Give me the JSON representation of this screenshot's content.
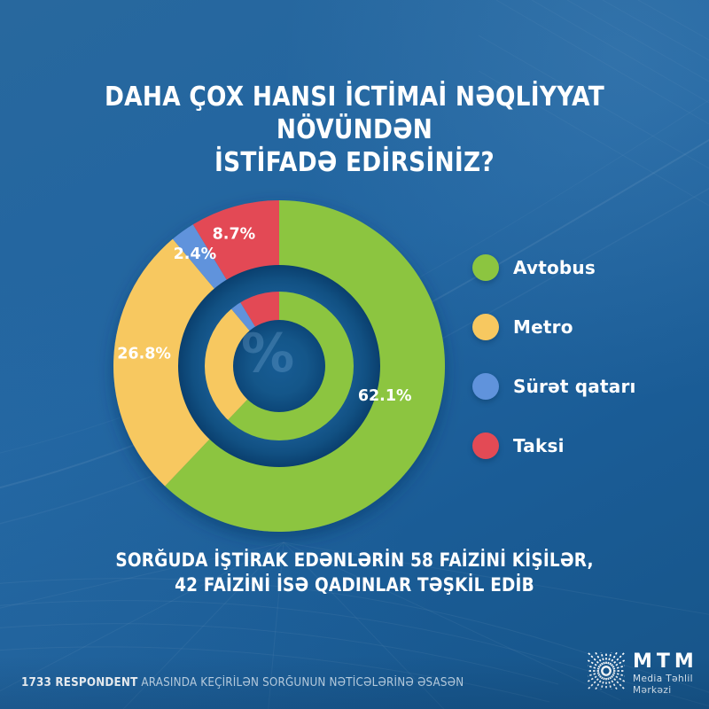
{
  "title": {
    "line1": "DAHA ÇOX HANSI İCTİMAİ NƏQLİYYAT NÖVÜNDƏN",
    "line2": "İSTİFADƏ EDİRSİNİZ?"
  },
  "chart_data": {
    "type": "pie",
    "style": "double-ring-donut",
    "title": "Daha çox hansı ictimai nəqliyyat növündən istifadə edirsiniz?",
    "categories": [
      "Avtobus",
      "Metro",
      "Sürət qatarı",
      "Taksi"
    ],
    "values": [
      62.1,
      26.8,
      2.4,
      8.7
    ],
    "labels": [
      "62.1%",
      "26.8%",
      "2.4%",
      "8.7%"
    ],
    "colors": [
      "#8cc540",
      "#f7c860",
      "#6093dc",
      "#e34a55"
    ],
    "center_symbol": "%",
    "legend_position": "right",
    "start_angle_deg": 0,
    "direction": "clockwise"
  },
  "legend": {
    "items": [
      {
        "label": "Avtobus",
        "color": "#8cc540"
      },
      {
        "label": "Metro",
        "color": "#f7c860"
      },
      {
        "label": "Sürət qatarı",
        "color": "#6093dc"
      },
      {
        "label": "Taksi",
        "color": "#e34a55"
      }
    ]
  },
  "subtitle": {
    "line1": "SORĞUDA İŞTİRAK EDƏNLƏRİN 58 FAİZİNİ KİŞİLƏR,",
    "line2": "42 FAİZİNİ İSƏ QADINLAR TƏŞKİL EDİB"
  },
  "footer": {
    "bold": "1733 RESPONDENT",
    "rest": " ARASINDA KEÇİRİLƏN SORĞUNUN NƏTİCƏLƏRİNƏ ƏSASƏN"
  },
  "logo": {
    "name": "MTM",
    "line1": "Media Təhlil",
    "line2": "Mərkəzi"
  },
  "theme": {
    "background": "#1f63a0",
    "background_dark": "#0c4678",
    "text": "#ffffff"
  }
}
